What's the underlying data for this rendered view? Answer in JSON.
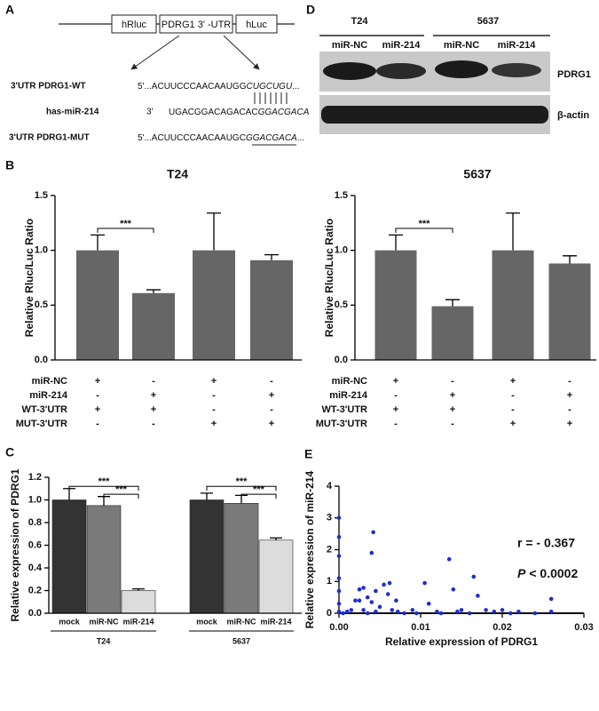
{
  "panel_labels": [
    "A",
    "B",
    "C",
    "D",
    "E"
  ],
  "panel_a": {
    "construct": [
      "hRluc",
      "PDRG1 3' -UTR",
      "hLuc"
    ],
    "wt": {
      "label": "3'UTR PDRG1-WT",
      "prefix": "5'...ACUUCCCAACAAUGG",
      "motif": "CUGCUGU",
      "suffix": "..."
    },
    "mirna": {
      "label": "has-miR-214",
      "end": "3'",
      "prefix": "UGACGGACAGACAC",
      "motif": "GGACGACA"
    },
    "mut": {
      "label": "3'UTR PDRG1-MUT",
      "prefix": "5'...ACUUCCCAACAAUGC",
      "motif": "GGACGACA",
      "suffix": "..."
    }
  },
  "panel_d": {
    "groups": [
      "T24",
      "5637"
    ],
    "lanes": [
      "miR-NC",
      "miR-214",
      "miR-NC",
      "miR-214"
    ],
    "proteins": [
      "PDRG1",
      "β-actin"
    ]
  },
  "chart_data": [
    {
      "type": "bar",
      "title": "T24",
      "ylabel": "Relative Rluc/Luc Ratio",
      "color": "#666666",
      "values": [
        1.0,
        0.61,
        1.0,
        0.91
      ],
      "errors": [
        0.14,
        0.03,
        0.34,
        0.05
      ],
      "ylim": [
        0,
        1.5
      ],
      "yticks": [
        {
          "value": 0,
          "label": "0.0"
        },
        {
          "value": 0.5,
          "label": "0.5"
        },
        {
          "value": 1,
          "label": "1.0"
        },
        {
          "value": 1.5,
          "label": "1.5"
        }
      ],
      "significance": "***",
      "conditions": [
        {
          "label": "miR-NC",
          "marks": [
            "+",
            "-",
            "+",
            "-"
          ]
        },
        {
          "label": "miR-214",
          "marks": [
            "-",
            "+",
            "-",
            "+"
          ]
        },
        {
          "label": "WT-3'UTR",
          "marks": [
            "+",
            "+",
            "-",
            "-"
          ]
        },
        {
          "label": "MUT-3'UTR",
          "marks": [
            "-",
            "-",
            "+",
            "+"
          ]
        }
      ]
    },
    {
      "type": "bar",
      "title": "5637",
      "ylabel": "Relative Rluc/Luc Ratio",
      "color": "#666666",
      "values": [
        1.0,
        0.49,
        1.0,
        0.88
      ],
      "errors": [
        0.14,
        0.06,
        0.34,
        0.07
      ],
      "ylim": [
        0,
        1.5
      ],
      "yticks": [
        {
          "value": 0,
          "label": "0.0"
        },
        {
          "value": 0.5,
          "label": "0.5"
        },
        {
          "value": 1,
          "label": "1.0"
        },
        {
          "value": 1.5,
          "label": "1.5"
        }
      ],
      "significance": "***",
      "conditions": [
        {
          "label": "miR-NC",
          "marks": [
            "+",
            "-",
            "+",
            "-"
          ]
        },
        {
          "label": "miR-214",
          "marks": [
            "-",
            "+",
            "-",
            "+"
          ]
        },
        {
          "label": "WT-3'UTR",
          "marks": [
            "+",
            "+",
            "-",
            "-"
          ]
        },
        {
          "label": "MUT-3'UTR",
          "marks": [
            "-",
            "-",
            "+",
            "+"
          ]
        }
      ]
    },
    {
      "type": "grouped_bar",
      "ylabel": "Relative expression of  PDRG1",
      "categories": [
        "T24",
        "5637"
      ],
      "series": [
        {
          "name": "mock",
          "color": "#333333",
          "values": [
            1.0,
            1.0
          ],
          "errors": [
            0.1,
            0.06
          ]
        },
        {
          "name": "miR-NC",
          "color": "#7a7a7a",
          "values": [
            0.95,
            0.97
          ],
          "errors": [
            0.08,
            0.07
          ]
        },
        {
          "name": "miR-214",
          "color": "#dcdcdc",
          "values": [
            0.2,
            0.645
          ],
          "errors": [
            0.015,
            0.02
          ]
        }
      ],
      "ylim": [
        0,
        1.2
      ],
      "yticks": [
        {
          "value": 0,
          "label": "0.0"
        },
        {
          "value": 0.2,
          "label": "0.2"
        },
        {
          "value": 0.4,
          "label": "0.4"
        },
        {
          "value": 0.6,
          "label": "0.6"
        },
        {
          "value": 0.8,
          "label": "0.8"
        },
        {
          "value": 1,
          "label": "1.0"
        },
        {
          "value": 1.2,
          "label": "1.2"
        }
      ],
      "significance": "***"
    },
    {
      "type": "scatter",
      "xlabel": "Relative expression of PDRG1",
      "ylabel": "Relative expression of miR-214",
      "color": "#1f2fd0",
      "x": [
        0,
        0,
        0,
        0,
        0,
        0,
        0,
        0.0005,
        0.001,
        0.0015,
        0.002,
        0.0025,
        0.0025,
        0.003,
        0.003,
        0.0035,
        0.0035,
        0.004,
        0.0042,
        0.004,
        0.0045,
        0.0045,
        0.005,
        0.0055,
        0.006,
        0.0062,
        0.0065,
        0.007,
        0.0072,
        0.008,
        0.009,
        0.0095,
        0.0105,
        0.011,
        0.012,
        0.0125,
        0.0135,
        0.014,
        0.0145,
        0.015,
        0.016,
        0.0165,
        0.017,
        0.018,
        0.019,
        0.02,
        0.021,
        0.022,
        0.024,
        0.026,
        0.026
      ],
      "y": [
        3.0,
        2.4,
        1.8,
        1.1,
        0.7,
        0.3,
        0.05,
        0.0,
        0.05,
        0.1,
        0.4,
        0.75,
        0.4,
        0.8,
        0.1,
        0.5,
        0.0,
        1.9,
        2.55,
        0.35,
        0.7,
        0.05,
        0.2,
        0.9,
        0.6,
        0.95,
        0.1,
        0.4,
        0.05,
        0.0,
        0.1,
        0.0,
        0.95,
        0.3,
        0.05,
        0.0,
        1.7,
        0.75,
        0.05,
        0.1,
        0.0,
        1.15,
        0.55,
        0.1,
        0.05,
        0.1,
        0.0,
        0.05,
        0.0,
        0.45,
        0.05
      ],
      "xlim": [
        0,
        0.03
      ],
      "xticks": [
        {
          "value": 0,
          "label": "0.00"
        },
        {
          "value": 0.01,
          "label": "0.01"
        },
        {
          "value": 0.02,
          "label": "0.02"
        },
        {
          "value": 0.03,
          "label": "0.03"
        }
      ],
      "ylim": [
        0,
        4
      ],
      "yticks": [
        0,
        1,
        2,
        3,
        4
      ],
      "annotation": "r = - 0.367",
      "p_symbol": "P",
      "p_text": "< 0.0002"
    }
  ]
}
